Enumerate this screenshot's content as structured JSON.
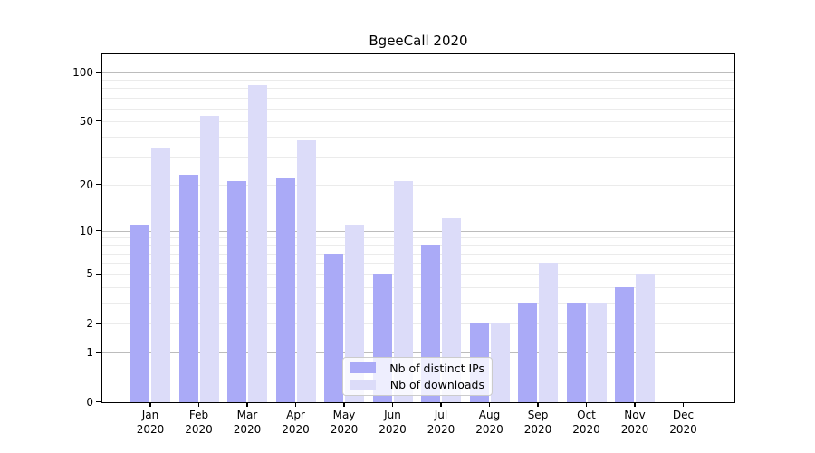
{
  "chart_data": {
    "type": "bar",
    "title": "BgeeCall 2020",
    "year_label": "2020",
    "categories": [
      "Jan",
      "Feb",
      "Mar",
      "Apr",
      "May",
      "Jun",
      "Jul",
      "Aug",
      "Sep",
      "Oct",
      "Nov",
      "Dec"
    ],
    "series": [
      {
        "name": "Nb of distinct IPs",
        "color": "#aaaaf7",
        "values": [
          11,
          23,
          21,
          22,
          7,
          5,
          8,
          2,
          3,
          3,
          4,
          0
        ]
      },
      {
        "name": "Nb of downloads",
        "color": "#dcdcf9",
        "values": [
          34,
          54,
          83,
          38,
          11,
          21,
          12,
          2,
          6,
          3,
          5,
          0
        ]
      }
    ],
    "xlabel": "",
    "ylabel": "",
    "yscale": "log1p",
    "y_ticks": [
      0,
      1,
      2,
      5,
      10,
      20,
      50,
      100
    ],
    "y_minor_ticks": [
      3,
      4,
      6,
      7,
      8,
      9,
      30,
      40,
      60,
      70,
      80,
      90
    ],
    "ylim": [
      0,
      130
    ],
    "grid": "horizontal",
    "legend_position": "inside lower-center"
  },
  "colors": {
    "decade_gridline": "#bcbcbc",
    "minor_gridline": "#ebebeb",
    "axis": "#000000",
    "background": "#ffffff"
  }
}
